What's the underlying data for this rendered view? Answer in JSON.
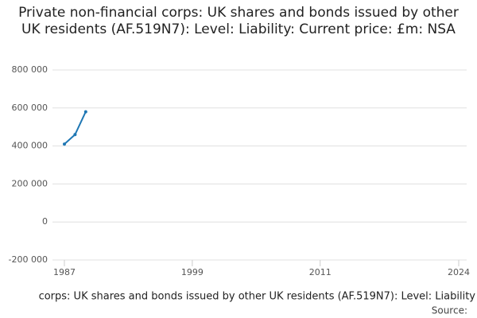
{
  "chart_data": {
    "type": "line",
    "title": "Private non-financial corps: UK shares and bonds issued by other UK residents (AF.519N7): Level: Liability: Current price: £m: NSA",
    "x_label": "corps: UK shares and bonds issued by other UK residents (AF.519N7): Level: Liability",
    "source": "Source:",
    "x": [
      1987,
      1988,
      1989
    ],
    "series": [
      {
        "color": "#1f77b4",
        "values": [
          410000,
          460000,
          580000
        ]
      }
    ],
    "xlim": [
      1987,
      2024
    ],
    "xticks": [
      1987,
      1999,
      2011,
      2024
    ],
    "ylim": [
      -200000,
      800000
    ],
    "yticks": [
      {
        "value": -200000,
        "label": "-200 000"
      },
      0,
      {
        "value": 200000,
        "label": "200 000"
      },
      {
        "value": 400000,
        "label": "400 000"
      },
      {
        "value": 600000,
        "label": "600 000"
      },
      {
        "value": 800000,
        "label": "800 000"
      }
    ],
    "grid": true
  }
}
